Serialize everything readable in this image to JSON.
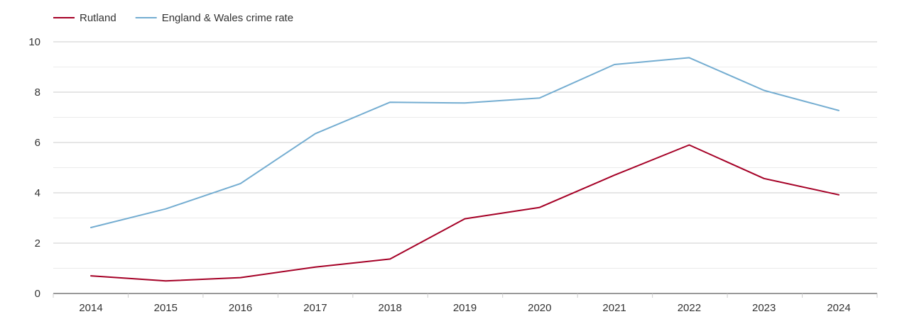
{
  "chart_data": {
    "type": "line",
    "title": "",
    "xlabel": "",
    "ylabel": "",
    "x": [
      "2014",
      "2015",
      "2016",
      "2017",
      "2018",
      "2019",
      "2020",
      "2021",
      "2022",
      "2023",
      "2024"
    ],
    "ylim": [
      0,
      10
    ],
    "y_ticks": [
      0,
      2,
      4,
      6,
      8,
      10
    ],
    "y_tick_labels": [
      "0",
      "2",
      "4",
      "6",
      "8",
      "10"
    ],
    "grid": true,
    "legend_position": "top-left",
    "series": [
      {
        "name": "Rutland",
        "color": "#a50026",
        "values": [
          0.7,
          0.5,
          0.63,
          1.05,
          1.37,
          2.97,
          3.42,
          4.7,
          5.9,
          4.57,
          3.92
        ]
      },
      {
        "name": "England & Wales crime rate",
        "color": "#74add1",
        "values": [
          2.62,
          3.36,
          4.37,
          6.35,
          7.6,
          7.57,
          7.77,
          9.1,
          9.37,
          8.07,
          7.27
        ]
      }
    ]
  }
}
